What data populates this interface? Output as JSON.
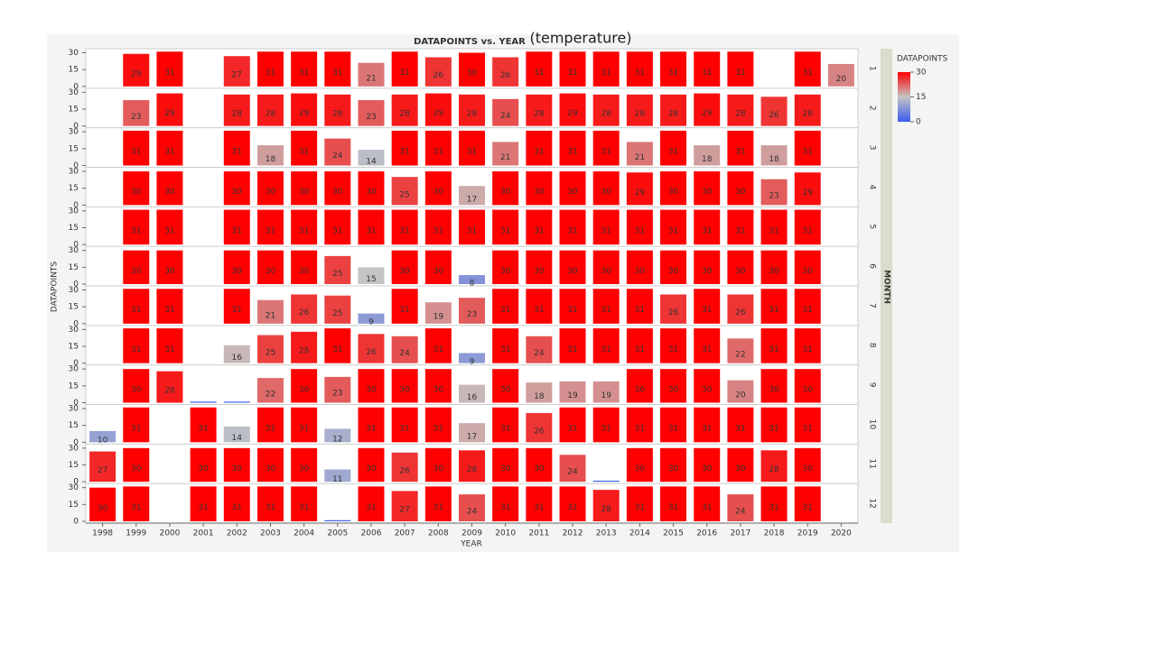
{
  "chart_data": {
    "type": "bar",
    "title": "DATAPOINTS vs. YEAR",
    "annotation": "(temperature)",
    "x_label": "YEAR",
    "y_label": "DATAPOINTS",
    "facet_label": "MONTH",
    "categories": [
      "1998",
      "1999",
      "2000",
      "2001",
      "2002",
      "2003",
      "2004",
      "2005",
      "2006",
      "2007",
      "2008",
      "2009",
      "2010",
      "2011",
      "2012",
      "2013",
      "2014",
      "2015",
      "2016",
      "2017",
      "2018",
      "2019",
      "2020"
    ],
    "series": [
      {
        "name": "1",
        "values": [
          null,
          29,
          31,
          null,
          27,
          31,
          31,
          31,
          21,
          31,
          26,
          30,
          26,
          31,
          31,
          31,
          31,
          31,
          31,
          31,
          null,
          31,
          20
        ]
      },
      {
        "name": "2",
        "values": [
          null,
          23,
          29,
          null,
          28,
          28,
          29,
          28,
          23,
          28,
          29,
          28,
          24,
          28,
          29,
          28,
          28,
          28,
          29,
          28,
          26,
          28,
          null
        ]
      },
      {
        "name": "3",
        "values": [
          null,
          31,
          31,
          null,
          31,
          18,
          31,
          24,
          14,
          31,
          31,
          31,
          21,
          31,
          31,
          31,
          21,
          31,
          18,
          31,
          18,
          31,
          null
        ]
      },
      {
        "name": "4",
        "values": [
          null,
          30,
          30,
          null,
          30,
          30,
          30,
          30,
          30,
          25,
          30,
          17,
          30,
          30,
          30,
          30,
          29,
          30,
          30,
          30,
          23,
          29,
          null
        ]
      },
      {
        "name": "5",
        "values": [
          null,
          31,
          31,
          null,
          31,
          31,
          31,
          31,
          31,
          31,
          31,
          31,
          31,
          31,
          31,
          31,
          31,
          31,
          31,
          31,
          31,
          31,
          null
        ]
      },
      {
        "name": "6",
        "values": [
          null,
          30,
          30,
          null,
          30,
          30,
          30,
          25,
          15,
          30,
          30,
          8,
          30,
          30,
          30,
          30,
          30,
          30,
          30,
          30,
          30,
          30,
          null
        ]
      },
      {
        "name": "7",
        "values": [
          null,
          31,
          31,
          null,
          31,
          21,
          26,
          25,
          9,
          31,
          19,
          23,
          31,
          31,
          31,
          31,
          31,
          26,
          31,
          26,
          31,
          31,
          null
        ]
      },
      {
        "name": "8",
        "values": [
          null,
          31,
          31,
          null,
          16,
          25,
          28,
          31,
          26,
          24,
          31,
          9,
          31,
          24,
          31,
          31,
          31,
          31,
          31,
          22,
          31,
          31,
          null
        ]
      },
      {
        "name": "9",
        "values": [
          null,
          30,
          28,
          1,
          1,
          22,
          30,
          23,
          30,
          30,
          30,
          16,
          30,
          18,
          19,
          19,
          30,
          30,
          30,
          20,
          30,
          30,
          null
        ]
      },
      {
        "name": "10",
        "values": [
          10,
          31,
          null,
          31,
          14,
          31,
          31,
          12,
          31,
          31,
          31,
          17,
          31,
          26,
          31,
          31,
          31,
          31,
          31,
          31,
          31,
          31,
          null
        ]
      },
      {
        "name": "11",
        "values": [
          27,
          30,
          null,
          30,
          30,
          30,
          30,
          11,
          30,
          26,
          30,
          28,
          30,
          30,
          24,
          1,
          30,
          30,
          30,
          30,
          28,
          30,
          null
        ]
      },
      {
        "name": "12",
        "values": [
          30,
          31,
          null,
          31,
          31,
          31,
          31,
          1,
          31,
          27,
          31,
          24,
          31,
          31,
          31,
          28,
          31,
          31,
          31,
          24,
          31,
          31,
          null
        ]
      }
    ],
    "ylim": [
      0,
      32
    ],
    "yticks": [
      0,
      15,
      30
    ],
    "legend_title": "DATAPOINTS",
    "legend_ticks": [
      0,
      15,
      30
    ],
    "colors": [
      "#3a5cf0",
      "#c4c4c4",
      "#ff0000"
    ]
  }
}
